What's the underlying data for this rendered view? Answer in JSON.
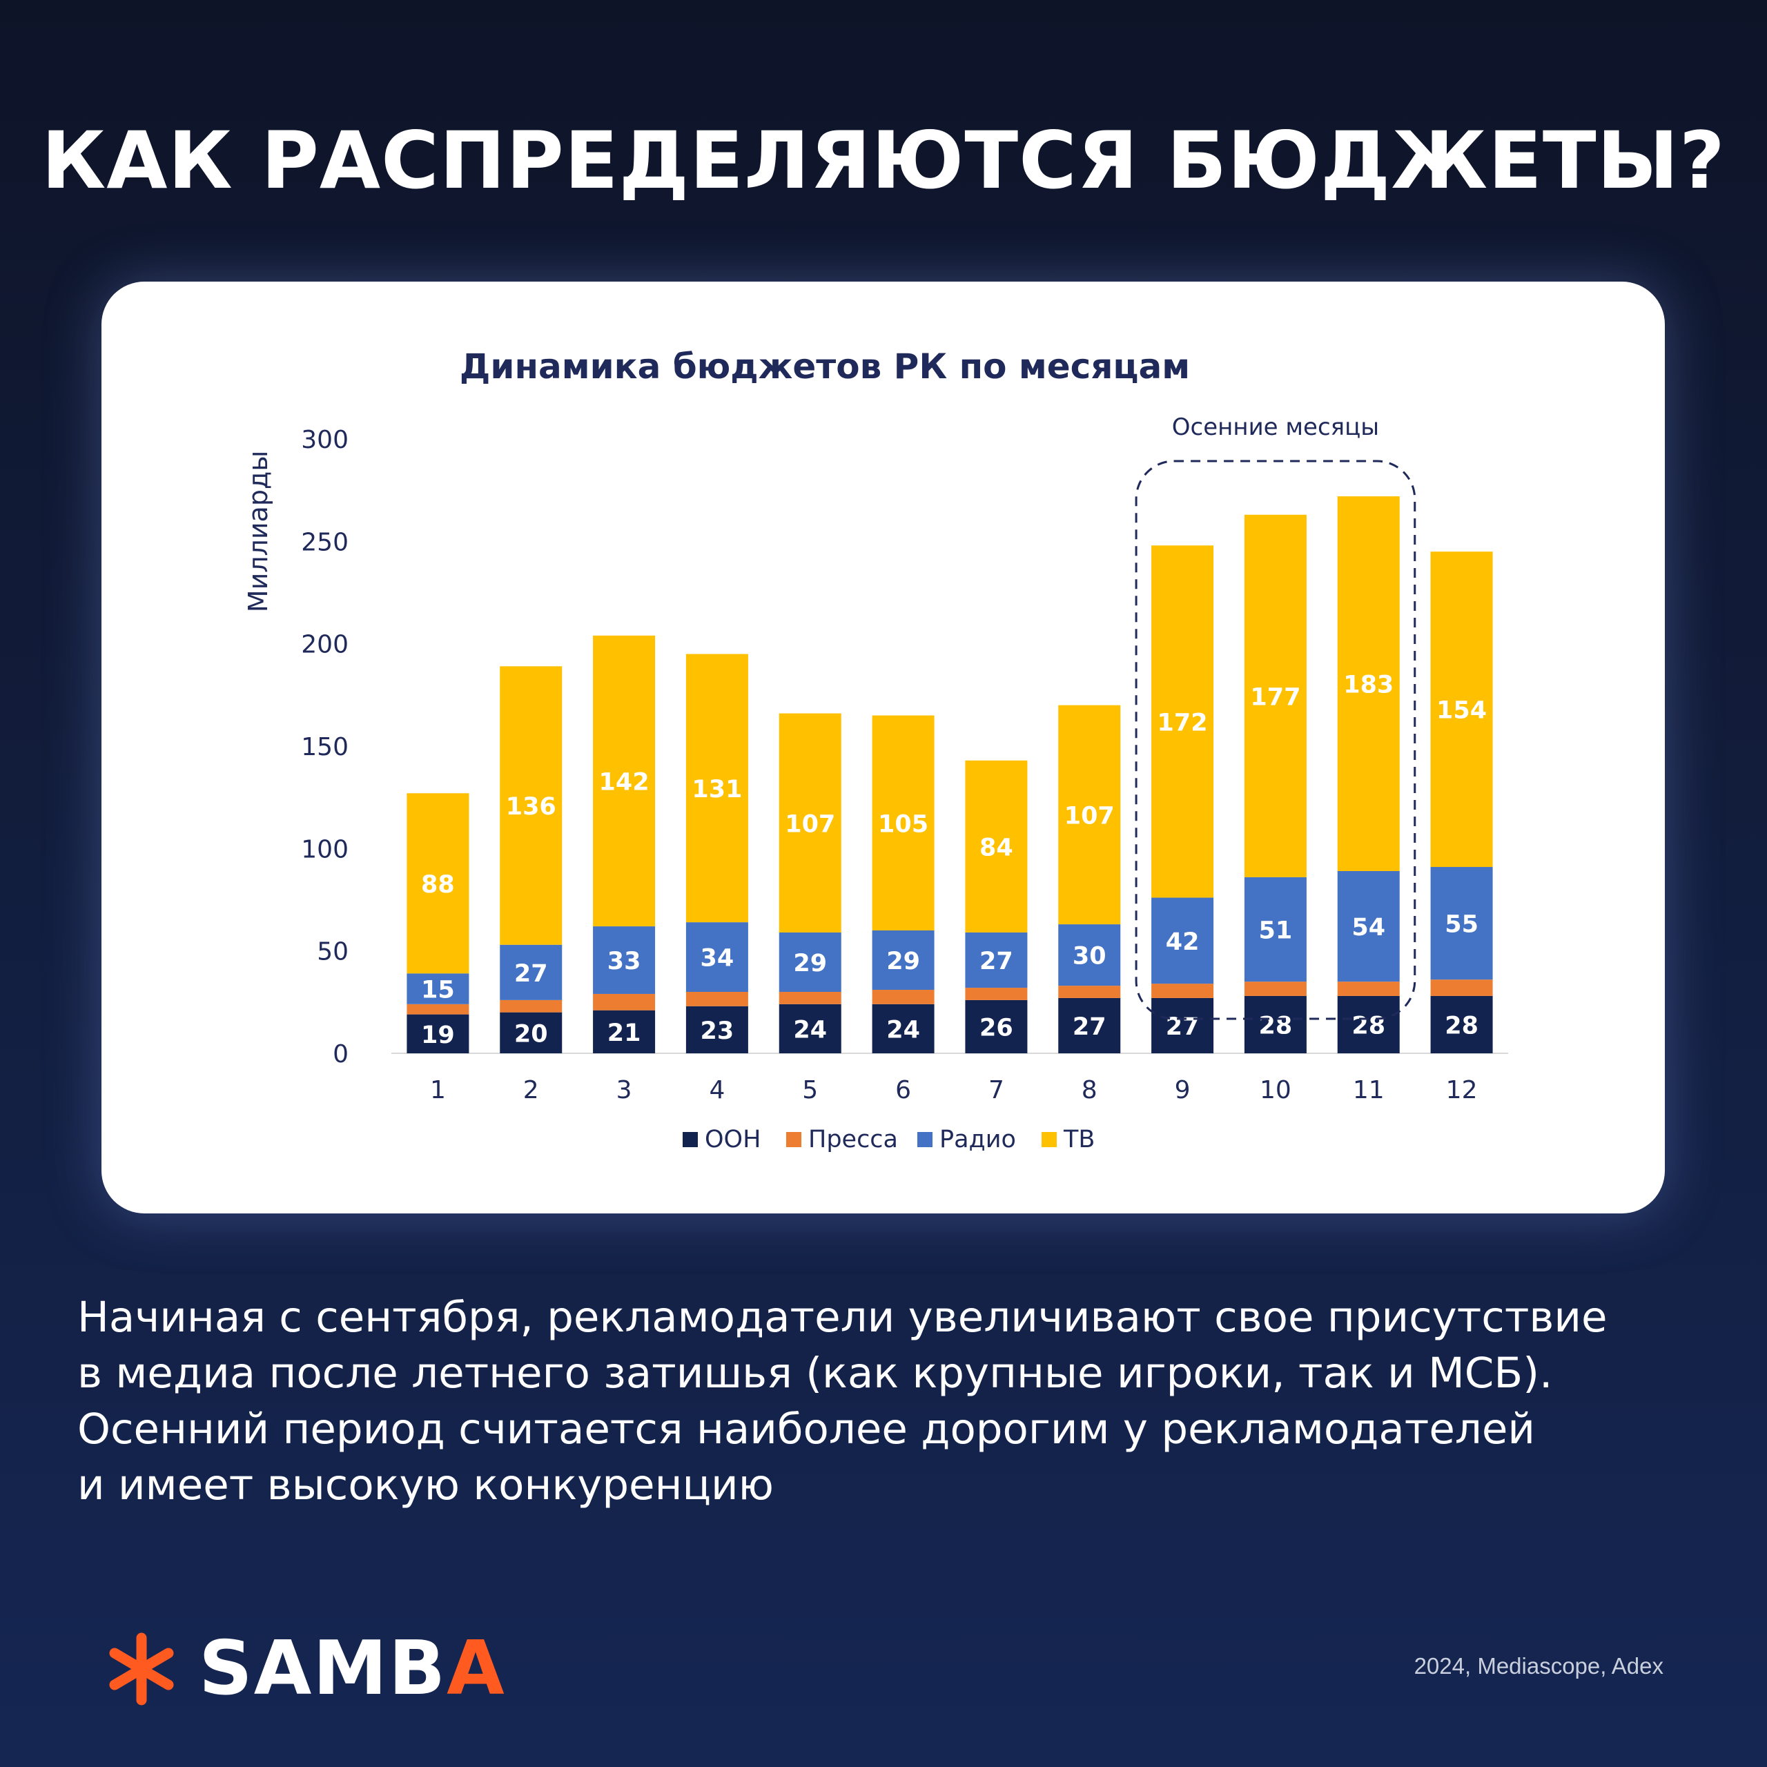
{
  "headline": "КАК РАСПРЕДЕЛЯЮТСЯ БЮДЖЕТЫ?",
  "chart_data": {
    "type": "bar",
    "stacked": true,
    "title": "Динамика бюджетов РК по месяцам",
    "ylabel": "Миллиарды",
    "xlabel": "",
    "ylim": [
      0,
      300
    ],
    "yticks": [
      0,
      50,
      100,
      150,
      200,
      250,
      300
    ],
    "categories": [
      "1",
      "2",
      "3",
      "4",
      "5",
      "6",
      "7",
      "8",
      "9",
      "10",
      "11",
      "12"
    ],
    "series": [
      {
        "name": "ООН",
        "color": "#13234f",
        "values": [
          19,
          20,
          21,
          23,
          24,
          24,
          26,
          27,
          27,
          28,
          28,
          28
        ]
      },
      {
        "name": "Пресса",
        "color": "#ed7d31",
        "values": [
          5,
          6,
          8,
          7,
          6,
          7,
          6,
          6,
          7,
          7,
          7,
          8
        ]
      },
      {
        "name": "Радио",
        "color": "#4472c4",
        "values": [
          15,
          27,
          33,
          34,
          29,
          29,
          27,
          30,
          42,
          51,
          54,
          55
        ]
      },
      {
        "name": "ТВ",
        "color": "#ffc000",
        "values": [
          88,
          136,
          142,
          131,
          107,
          105,
          84,
          107,
          172,
          177,
          183,
          154
        ]
      }
    ],
    "labeled_series": [
      "ООН",
      "Радио",
      "ТВ"
    ],
    "grid": false,
    "legend_position": "bottom",
    "annotation": {
      "text": "Осенние месяцы",
      "categories": [
        "9",
        "10",
        "11"
      ],
      "style": "dashed-rounded-box"
    }
  },
  "paragraph": {
    "lines": [
      "Начиная с сентября, рекламодатели увеличивают свое присутствие",
      "в медиа после летнего затишья (как крупные игроки, так и МСБ).",
      "Осенний период считается наиболее дорогим у рекламодателей",
      "и имеет высокую конкуренцию"
    ]
  },
  "brand": {
    "name_main": "SAMB",
    "name_accent": "A",
    "accent_color": "#ff5a1f",
    "logo_icon": "asterisk-logo-icon"
  },
  "source": "2024, Mediascope, Adex"
}
